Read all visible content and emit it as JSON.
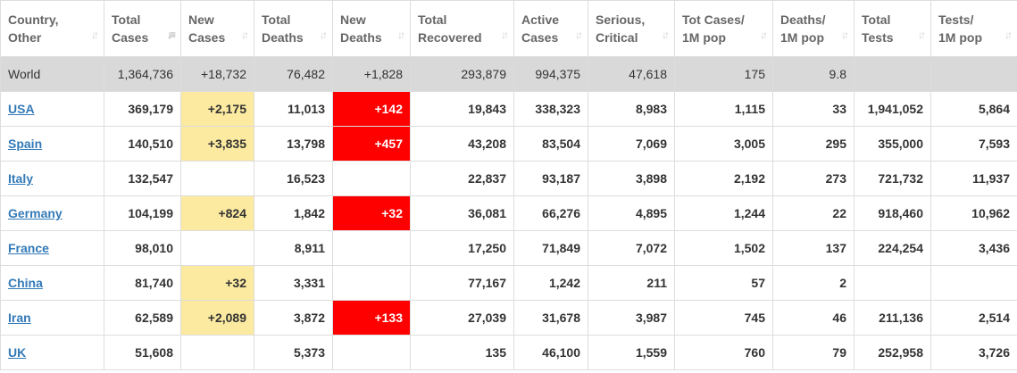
{
  "colors": {
    "new_cases_bg": "#fbeaa0",
    "new_deaths_bg": "#ff0000",
    "world_row_bg": "#d9d9d9",
    "link": "#337ab7"
  },
  "columns": [
    {
      "line1": "Country,",
      "line2": "Other"
    },
    {
      "line1": "Total",
      "line2": "Cases"
    },
    {
      "line1": "New",
      "line2": "Cases"
    },
    {
      "line1": "Total",
      "line2": "Deaths"
    },
    {
      "line1": "New",
      "line2": "Deaths"
    },
    {
      "line1": "Total",
      "line2": "Recovered"
    },
    {
      "line1": "Active",
      "line2": "Cases"
    },
    {
      "line1": "Serious,",
      "line2": "Critical"
    },
    {
      "line1": "Tot Cases/",
      "line2": "1M pop"
    },
    {
      "line1": "Deaths/",
      "line2": "1M pop"
    },
    {
      "line1": "Total",
      "line2": "Tests"
    },
    {
      "line1": "Tests/",
      "line2": "1M pop"
    }
  ],
  "sort_icons": [
    "sort-icon",
    "sort-desc-icon"
  ],
  "world": [
    "World",
    "1,364,736",
    "+18,732",
    "76,482",
    "+1,828",
    "293,879",
    "994,375",
    "47,618",
    "175",
    "9.8",
    "",
    ""
  ],
  "rows": [
    [
      "USA",
      "369,179",
      "+2,175",
      "11,013",
      "+142",
      "19,843",
      "338,323",
      "8,983",
      "1,115",
      "33",
      "1,941,052",
      "5,864"
    ],
    [
      "Spain",
      "140,510",
      "+3,835",
      "13,798",
      "+457",
      "43,208",
      "83,504",
      "7,069",
      "3,005",
      "295",
      "355,000",
      "7,593"
    ],
    [
      "Italy",
      "132,547",
      "",
      "16,523",
      "",
      "22,837",
      "93,187",
      "3,898",
      "2,192",
      "273",
      "721,732",
      "11,937"
    ],
    [
      "Germany",
      "104,199",
      "+824",
      "1,842",
      "+32",
      "36,081",
      "66,276",
      "4,895",
      "1,244",
      "22",
      "918,460",
      "10,962"
    ],
    [
      "France",
      "98,010",
      "",
      "8,911",
      "",
      "17,250",
      "71,849",
      "7,072",
      "1,502",
      "137",
      "224,254",
      "3,436"
    ],
    [
      "China",
      "81,740",
      "+32",
      "3,331",
      "",
      "77,167",
      "1,242",
      "211",
      "57",
      "2",
      "",
      ""
    ],
    [
      "Iran",
      "62,589",
      "+2,089",
      "3,872",
      "+133",
      "27,039",
      "31,678",
      "3,987",
      "745",
      "46",
      "211,136",
      "2,514"
    ],
    [
      "UK",
      "51,608",
      "",
      "5,373",
      "",
      "135",
      "46,100",
      "1,559",
      "760",
      "79",
      "252,958",
      "3,726"
    ]
  ]
}
